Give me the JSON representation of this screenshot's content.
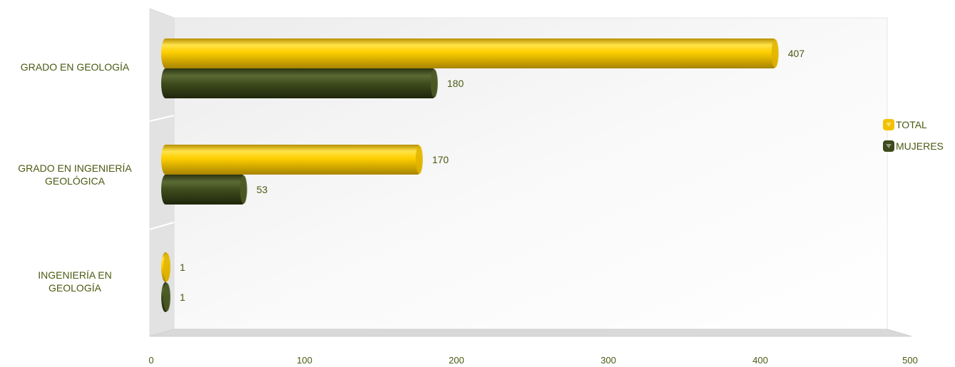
{
  "chart_data": {
    "type": "bar",
    "orientation": "horizontal",
    "categories": [
      "GRADO EN GEOLOGÍA",
      "GRADO EN INGENIERÍA GEOLÓGICA",
      "INGENIERÍA EN GEOLOGÍA"
    ],
    "category_lines": [
      [
        "GRADO EN GEOLOGÍA"
      ],
      [
        "GRADO EN INGENIERÍA",
        "GEOLÓGICA"
      ],
      [
        "INGENIERÍA EN",
        "GEOLOGÍA"
      ]
    ],
    "series": [
      {
        "name": "TOTAL",
        "values": [
          407,
          170,
          1
        ],
        "color": "#f2c200"
      },
      {
        "name": "MUJERES",
        "values": [
          180,
          53,
          1
        ],
        "color": "#3d4a1c"
      }
    ],
    "xticks": [
      "0",
      "100",
      "200",
      "300",
      "400",
      "500"
    ],
    "xlim": [
      0,
      500
    ],
    "grid": false,
    "legend": "right"
  }
}
